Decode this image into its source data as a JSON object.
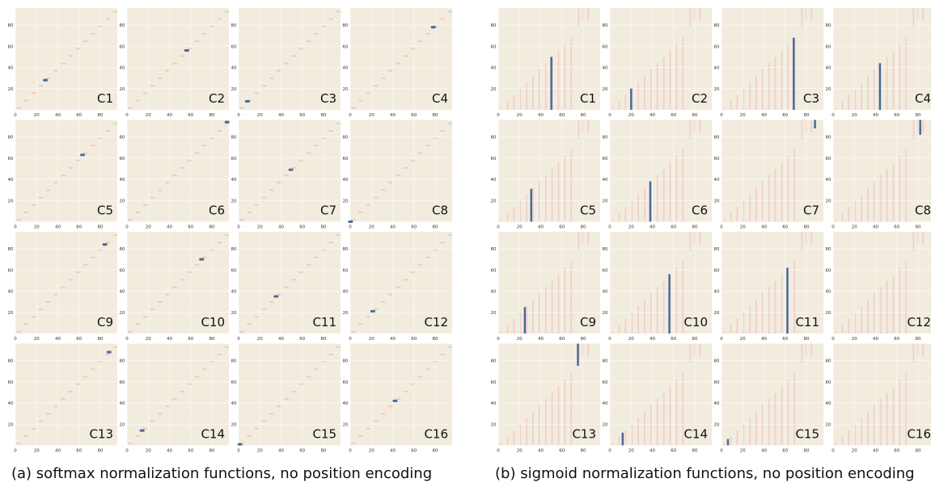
{
  "panels": [
    {
      "caption": "(a) softmax normalization functions, no position encoding",
      "normalization": "softmax",
      "colors": {
        "background": "#f2ecdf",
        "pattern": "#edc9c4",
        "highlight": "#4a6a96",
        "grid": "#ffffff"
      },
      "chart_data": {
        "type": "heatmap",
        "x_ticks": [
          0,
          20,
          40,
          60,
          80
        ],
        "y_ticks": [
          20,
          40,
          60,
          80
        ],
        "xlim": [
          0,
          96
        ],
        "ylim": [
          0,
          96
        ],
        "layers": [
          {
            "label": "C1",
            "value": 28
          },
          {
            "label": "C2",
            "value": 56
          },
          {
            "label": "C3",
            "value": 8
          },
          {
            "label": "C4",
            "value": 78
          },
          {
            "label": "C5",
            "value": 63
          },
          {
            "label": "C6",
            "value": 94
          },
          {
            "label": "C7",
            "value": 49
          },
          {
            "label": "C8",
            "value": 0
          },
          {
            "label": "C9",
            "value": 84
          },
          {
            "label": "C10",
            "value": 70
          },
          {
            "label": "C11",
            "value": 35
          },
          {
            "label": "C12",
            "value": 21
          },
          {
            "label": "C13",
            "value": 88
          },
          {
            "label": "C14",
            "value": 14
          },
          {
            "label": "C15",
            "value": 1
          },
          {
            "label": "C16",
            "value": 42
          }
        ]
      }
    },
    {
      "caption": "(b) sigmoid normalization functions, no position encoding",
      "normalization": "sigmoid",
      "colors": {
        "background": "#f2ecdf",
        "pattern": "#edc9c4",
        "highlight": "#4a6a96",
        "grid": "#ffffff"
      },
      "chart_data": {
        "type": "heatmap",
        "x_ticks": [
          0,
          20,
          40,
          60,
          80
        ],
        "y_ticks": [
          20,
          40,
          60,
          80
        ],
        "xlim": [
          0,
          96
        ],
        "ylim": [
          0,
          96
        ],
        "layers": [
          {
            "label": "C1",
            "value": 50
          },
          {
            "label": "C2",
            "value": 20
          },
          {
            "label": "C3",
            "value": 68
          },
          {
            "label": "C4",
            "value": 44
          },
          {
            "label": "C5",
            "value": 31
          },
          {
            "label": "C6",
            "value": 38
          },
          {
            "label": "C7",
            "value": 88
          },
          {
            "label": "C8",
            "value": 82
          },
          {
            "label": "C9",
            "value": 25
          },
          {
            "label": "C10",
            "value": 56
          },
          {
            "label": "C11",
            "value": 62
          },
          {
            "label": "C12",
            "value": 0
          },
          {
            "label": "C13",
            "value": 75
          },
          {
            "label": "C14",
            "value": 12
          },
          {
            "label": "C15",
            "value": 6
          },
          {
            "label": "C16",
            "value": 0
          }
        ]
      }
    }
  ]
}
